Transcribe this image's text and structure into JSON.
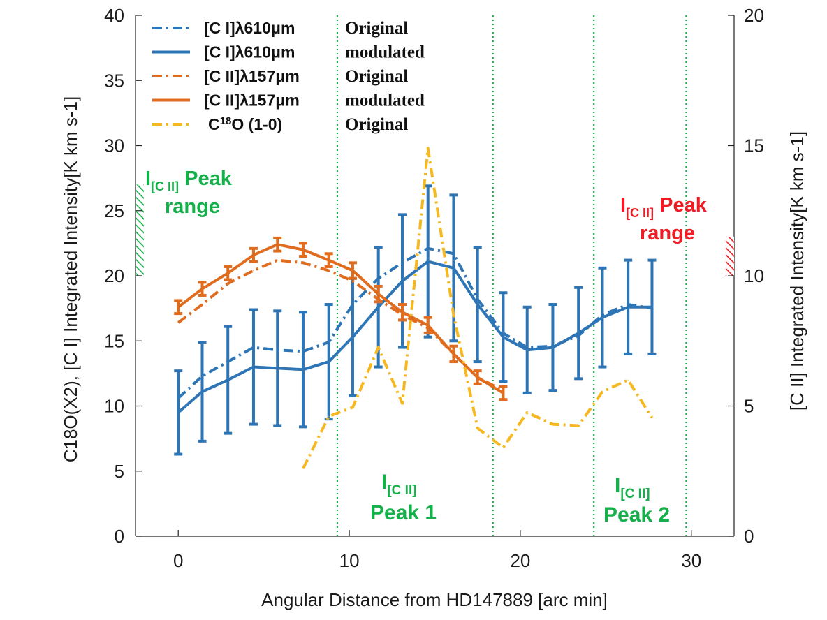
{
  "chart_data": {
    "type": "line",
    "xlabel": "Angular Distance from HD147889 [arc min]",
    "ylabel_left": "C18O(X2), [C I] Integrated Intensity[K km s-1]",
    "ylabel_right": "[C II] Integrated Intensity[K km s-1]",
    "xlim": [
      -2.5,
      32.5
    ],
    "ylim_left": [
      0,
      40
    ],
    "ylim_right": [
      0,
      20
    ],
    "xticks": [
      0,
      10,
      20,
      30
    ],
    "yticks_left": [
      0,
      5,
      10,
      15,
      20,
      25,
      30,
      35,
      40
    ],
    "yticks_right": [
      0,
      5,
      10,
      15,
      20
    ],
    "vlines": [
      9.3,
      18.4,
      24.3,
      29.7
    ],
    "series": [
      {
        "name": "[C I]λ610μm Original",
        "legend_label": "[C I]λ610μm",
        "legend_kind": "Original",
        "color": "#2e75b6",
        "style": "dashdot",
        "axis": "left",
        "x": [
          0,
          1.4,
          2.9,
          4.4,
          5.8,
          7.3,
          8.8,
          10.2,
          11.7,
          13.1,
          14.6,
          16.1,
          17.5,
          19.0,
          20.4,
          21.9,
          23.4,
          24.8,
          26.3,
          27.7
        ],
        "y": [
          10.6,
          12.3,
          13.4,
          14.5,
          14.3,
          14.2,
          14.9,
          17.8,
          19.8,
          21.0,
          22.1,
          21.7,
          18.2,
          15.6,
          14.5,
          14.6,
          15.4,
          17.0,
          17.8,
          17.5
        ]
      },
      {
        "name": "[C I]λ610μm modulated",
        "legend_label": "[C I]λ610μm",
        "legend_kind": "modulated",
        "color": "#2e75b6",
        "style": "solid",
        "axis": "left",
        "x": [
          0,
          1.4,
          2.9,
          4.4,
          5.8,
          7.3,
          8.8,
          10.2,
          11.7,
          13.1,
          14.6,
          16.1,
          17.5,
          19.0,
          20.4,
          21.9,
          23.4,
          24.8,
          26.3,
          27.7
        ],
        "y": [
          9.5,
          11.1,
          12.0,
          13.0,
          12.9,
          12.8,
          13.4,
          15.3,
          17.6,
          19.6,
          21.1,
          20.6,
          17.8,
          15.3,
          14.3,
          14.5,
          15.6,
          16.8,
          17.6,
          17.6
        ],
        "err": [
          3.2,
          3.8,
          4.1,
          4.4,
          4.4,
          4.4,
          4.4,
          4.5,
          4.6,
          5.1,
          5.8,
          5.6,
          4.4,
          3.4,
          3.3,
          3.3,
          3.5,
          3.8,
          3.6,
          3.6
        ]
      },
      {
        "name": "[C II]λ157μm Original",
        "legend_label": "[C II]λ157μm",
        "legend_kind": "Original",
        "color": "#e06d1f",
        "style": "dashdot",
        "axis": "right",
        "x": [
          0,
          1.4,
          2.9,
          4.4,
          5.8,
          7.3,
          8.8,
          10.2,
          11.7,
          13.1,
          14.6,
          16.1,
          17.5,
          19.0
        ],
        "y": [
          8.2,
          8.9,
          9.7,
          10.2,
          10.6,
          10.5,
          10.2,
          9.8,
          9.1,
          8.5,
          8.0,
          7.0,
          6.1,
          5.6
        ]
      },
      {
        "name": "[C II]λ157μm modulated",
        "legend_label": "[C II]λ157μm",
        "legend_kind": "modulated",
        "color": "#e06d1f",
        "style": "solid",
        "axis": "right",
        "x": [
          0,
          1.4,
          2.9,
          4.4,
          5.8,
          7.3,
          8.8,
          10.2,
          11.7,
          13.1,
          14.6,
          16.1,
          17.5,
          19.0
        ],
        "y": [
          8.8,
          9.5,
          10.1,
          10.8,
          11.2,
          11.0,
          10.6,
          10.2,
          9.3,
          8.6,
          8.1,
          7.0,
          6.1,
          5.5
        ],
        "err": [
          0.25,
          0.25,
          0.25,
          0.25,
          0.25,
          0.25,
          0.25,
          0.3,
          0.3,
          0.3,
          0.3,
          0.3,
          0.25,
          0.25
        ]
      },
      {
        "name": "C18O (1-0) Original",
        "legend_label": "C18O (1-0)",
        "legend_kind": "Original",
        "color": "#f5b820",
        "style": "dashdot",
        "axis": "left",
        "x": [
          7.3,
          8.8,
          10.2,
          11.7,
          13.1,
          14.6,
          16.1,
          17.5,
          19.0,
          20.4,
          21.9,
          23.4,
          24.8,
          26.3,
          27.7
        ],
        "y": [
          5.2,
          9.2,
          9.9,
          14.5,
          10.2,
          29.8,
          17.0,
          8.3,
          6.8,
          9.5,
          8.6,
          8.5,
          11.1,
          12.0,
          9.1
        ]
      }
    ],
    "annotations": [
      {
        "text": "I[C II] Peak range",
        "main": "I",
        "sub": "[C II]",
        "line1_rest": "Peak",
        "line2": "range",
        "color": "#16b04b",
        "hatch_axis": "left",
        "hatch_range": [
          20,
          27
        ]
      },
      {
        "text": "I[C II] Peak range",
        "main": "I",
        "sub": "[C II]",
        "line1_rest": "Peak",
        "line2": "range",
        "color": "#ee1c24",
        "hatch_axis": "right",
        "hatch_range": [
          10,
          11.5
        ]
      },
      {
        "text": "I[C II] Peak 1",
        "main": "I",
        "sub": "[C II]",
        "line2": "Peak 1",
        "color": "#16b04b"
      },
      {
        "text": "I[C II] Peak 2",
        "main": "I",
        "sub": "[C II]",
        "line2": "Peak 2",
        "color": "#16b04b"
      }
    ]
  }
}
